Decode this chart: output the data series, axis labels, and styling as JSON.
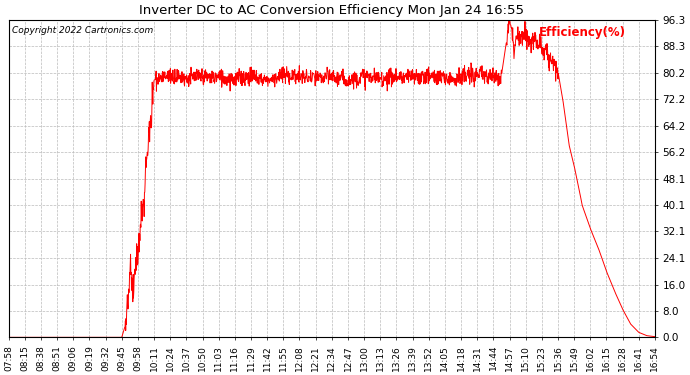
{
  "title": "Inverter DC to AC Conversion Efficiency Mon Jan 24 16:55",
  "copyright_text": "Copyright 2022 Cartronics.com",
  "legend_label": "Efficiency(%)",
  "line_color": "red",
  "background_color": "white",
  "grid_color": "#bbbbbb",
  "yticks": [
    0.0,
    8.0,
    16.0,
    24.1,
    32.1,
    40.1,
    48.1,
    56.2,
    64.2,
    72.2,
    80.2,
    88.3,
    96.3
  ],
  "xtick_labels": [
    "07:58",
    "08:15",
    "08:38",
    "08:51",
    "09:06",
    "09:19",
    "09:32",
    "09:45",
    "09:58",
    "10:11",
    "10:24",
    "10:37",
    "10:50",
    "11:03",
    "11:16",
    "11:29",
    "11:42",
    "11:55",
    "12:08",
    "12:21",
    "12:34",
    "12:47",
    "13:00",
    "13:13",
    "13:26",
    "13:39",
    "13:52",
    "14:05",
    "14:18",
    "14:31",
    "14:44",
    "14:57",
    "15:10",
    "15:23",
    "15:36",
    "15:49",
    "16:02",
    "16:15",
    "16:28",
    "16:41",
    "16:54"
  ],
  "num_xticks": 41,
  "figsize": [
    6.9,
    3.75
  ],
  "dpi": 100
}
